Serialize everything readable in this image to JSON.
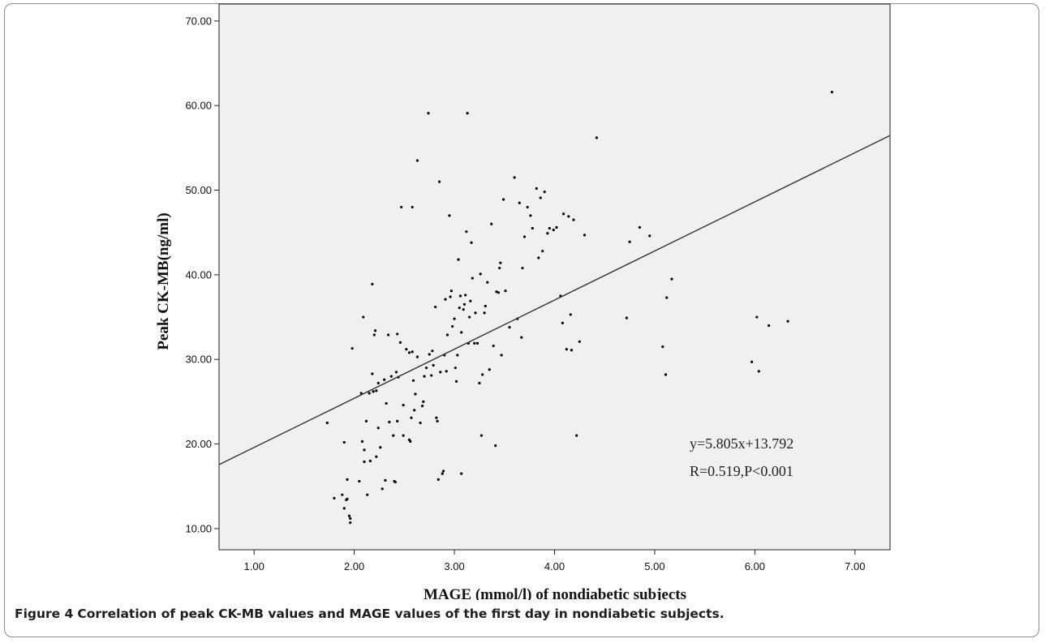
{
  "caption": {
    "label": "Figure 4",
    "text": "Correlation of peak CK-MB values and MAGE values of the first day in nondiabetic subjects."
  },
  "chart_data": {
    "type": "scatter",
    "xlabel": "MAGE (mmol/l) of nondiabetic subjects",
    "ylabel": "Peak CK-MB(ng/ml)",
    "xlim": [
      0.65,
      7.35
    ],
    "ylim": [
      7.5,
      72.0
    ],
    "x_ticks": [
      1.0,
      2.0,
      3.0,
      4.0,
      5.0,
      6.0,
      7.0
    ],
    "x_tick_labels": [
      "1.00",
      "2.00",
      "3.00",
      "4.00",
      "5.00",
      "6.00",
      "7.00"
    ],
    "y_ticks": [
      10.0,
      20.0,
      30.0,
      40.0,
      50.0,
      60.0,
      70.0
    ],
    "y_tick_labels": [
      "10.00",
      "20.00",
      "30.00",
      "40.00",
      "50.00",
      "60.00",
      "70.00"
    ],
    "grid": false,
    "plot_background": "#f0f0f0",
    "point_color": "#000000",
    "fit_line": {
      "slope": 5.805,
      "intercept": 13.792,
      "color": "#333333"
    },
    "annotations": [
      "y=5.805x+13.792",
      "R=0.519,P<0.001"
    ],
    "points": [
      [
        1.73,
        22.5
      ],
      [
        1.8,
        13.6
      ],
      [
        1.88,
        14.0
      ],
      [
        1.9,
        12.4
      ],
      [
        1.9,
        20.2
      ],
      [
        1.92,
        13.4
      ],
      [
        1.93,
        13.5
      ],
      [
        1.93,
        15.8
      ],
      [
        1.95,
        11.5
      ],
      [
        1.96,
        10.7
      ],
      [
        1.96,
        11.2
      ],
      [
        1.98,
        31.3
      ],
      [
        2.05,
        15.6
      ],
      [
        2.07,
        26.0
      ],
      [
        2.08,
        20.3
      ],
      [
        2.09,
        35.0
      ],
      [
        2.1,
        17.9
      ],
      [
        2.1,
        19.3
      ],
      [
        2.12,
        22.7
      ],
      [
        2.13,
        14.0
      ],
      [
        2.15,
        26.0
      ],
      [
        2.16,
        18.0
      ],
      [
        2.18,
        28.3
      ],
      [
        2.18,
        38.9
      ],
      [
        2.19,
        26.2
      ],
      [
        2.2,
        32.9
      ],
      [
        2.21,
        33.4
      ],
      [
        2.22,
        18.5
      ],
      [
        2.22,
        26.3
      ],
      [
        2.24,
        27.2
      ],
      [
        2.24,
        21.9
      ],
      [
        2.26,
        19.6
      ],
      [
        2.28,
        14.7
      ],
      [
        2.3,
        27.6
      ],
      [
        2.31,
        15.7
      ],
      [
        2.32,
        24.8
      ],
      [
        2.34,
        32.9
      ],
      [
        2.35,
        22.6
      ],
      [
        2.37,
        28.0
      ],
      [
        2.39,
        21.0
      ],
      [
        2.4,
        15.6
      ],
      [
        2.41,
        15.5
      ],
      [
        2.42,
        28.5
      ],
      [
        2.43,
        22.7
      ],
      [
        2.43,
        33.0
      ],
      [
        2.44,
        27.9
      ],
      [
        2.46,
        32.0
      ],
      [
        2.47,
        48.0
      ],
      [
        2.49,
        24.6
      ],
      [
        2.49,
        21.0
      ],
      [
        2.52,
        31.2
      ],
      [
        2.55,
        20.5
      ],
      [
        2.55,
        30.8
      ],
      [
        2.56,
        20.3
      ],
      [
        2.57,
        23.1
      ],
      [
        2.58,
        30.9
      ],
      [
        2.58,
        48.0
      ],
      [
        2.59,
        27.5
      ],
      [
        2.6,
        24.0
      ],
      [
        2.61,
        25.9
      ],
      [
        2.63,
        53.5
      ],
      [
        2.63,
        30.3
      ],
      [
        2.66,
        22.5
      ],
      [
        2.68,
        24.5
      ],
      [
        2.69,
        25.0
      ],
      [
        2.7,
        28.0
      ],
      [
        2.72,
        29.0
      ],
      [
        2.74,
        59.1
      ],
      [
        2.75,
        30.6
      ],
      [
        2.77,
        28.1
      ],
      [
        2.78,
        31.0
      ],
      [
        2.79,
        29.3
      ],
      [
        2.81,
        36.2
      ],
      [
        2.82,
        23.1
      ],
      [
        2.83,
        22.7
      ],
      [
        2.84,
        15.8
      ],
      [
        2.85,
        51.0
      ],
      [
        2.86,
        28.5
      ],
      [
        2.88,
        16.5
      ],
      [
        2.89,
        16.8
      ],
      [
        2.9,
        30.5
      ],
      [
        2.91,
        37.1
      ],
      [
        2.92,
        28.6
      ],
      [
        2.93,
        32.9
      ],
      [
        2.95,
        47.0
      ],
      [
        2.96,
        37.4
      ],
      [
        2.97,
        38.1
      ],
      [
        2.98,
        33.9
      ],
      [
        3.0,
        34.8
      ],
      [
        3.01,
        29.0
      ],
      [
        3.02,
        27.4
      ],
      [
        3.03,
        30.5
      ],
      [
        3.04,
        41.8
      ],
      [
        3.05,
        36.1
      ],
      [
        3.06,
        37.5
      ],
      [
        3.07,
        33.2
      ],
      [
        3.07,
        16.5
      ],
      [
        3.09,
        35.9
      ],
      [
        3.1,
        36.5
      ],
      [
        3.11,
        37.6
      ],
      [
        3.12,
        45.1
      ],
      [
        3.13,
        59.1
      ],
      [
        3.14,
        31.9
      ],
      [
        3.15,
        35.0
      ],
      [
        3.16,
        36.9
      ],
      [
        3.17,
        43.8
      ],
      [
        3.18,
        39.6
      ],
      [
        3.2,
        31.9
      ],
      [
        3.21,
        35.5
      ],
      [
        3.23,
        31.9
      ],
      [
        3.25,
        27.2
      ],
      [
        3.26,
        40.1
      ],
      [
        3.27,
        21.0
      ],
      [
        3.28,
        28.2
      ],
      [
        3.3,
        35.5
      ],
      [
        3.31,
        36.3
      ],
      [
        3.33,
        39.1
      ],
      [
        3.35,
        28.8
      ],
      [
        3.37,
        46.0
      ],
      [
        3.39,
        31.6
      ],
      [
        3.41,
        19.8
      ],
      [
        3.42,
        38.0
      ],
      [
        3.44,
        37.9
      ],
      [
        3.45,
        40.8
      ],
      [
        3.46,
        41.4
      ],
      [
        3.47,
        30.5
      ],
      [
        3.49,
        48.9
      ],
      [
        3.51,
        38.1
      ],
      [
        3.55,
        33.8
      ],
      [
        3.6,
        51.5
      ],
      [
        3.63,
        34.8
      ],
      [
        3.65,
        48.5
      ],
      [
        3.67,
        32.6
      ],
      [
        3.68,
        40.8
      ],
      [
        3.7,
        44.5
      ],
      [
        3.73,
        48.0
      ],
      [
        3.76,
        47.0
      ],
      [
        3.78,
        45.5
      ],
      [
        3.82,
        50.2
      ],
      [
        3.84,
        42.0
      ],
      [
        3.86,
        49.1
      ],
      [
        3.88,
        42.8
      ],
      [
        3.9,
        49.8
      ],
      [
        3.93,
        44.9
      ],
      [
        3.95,
        45.5
      ],
      [
        3.99,
        45.3
      ],
      [
        4.02,
        45.6
      ],
      [
        4.06,
        37.5
      ],
      [
        4.08,
        34.3
      ],
      [
        4.09,
        47.2
      ],
      [
        4.12,
        31.2
      ],
      [
        4.14,
        46.9
      ],
      [
        4.16,
        35.3
      ],
      [
        4.17,
        31.1
      ],
      [
        4.19,
        46.5
      ],
      [
        4.22,
        21.0
      ],
      [
        4.25,
        32.1
      ],
      [
        4.3,
        44.7
      ],
      [
        4.42,
        56.2
      ],
      [
        4.72,
        34.9
      ],
      [
        4.75,
        43.9
      ],
      [
        4.85,
        45.6
      ],
      [
        4.95,
        44.6
      ],
      [
        5.08,
        31.5
      ],
      [
        5.11,
        28.2
      ],
      [
        5.12,
        37.3
      ],
      [
        5.17,
        39.5
      ],
      [
        5.97,
        29.7
      ],
      [
        6.02,
        35.0
      ],
      [
        6.04,
        28.6
      ],
      [
        6.14,
        34.0
      ],
      [
        6.33,
        34.5
      ],
      [
        6.77,
        61.6
      ]
    ]
  }
}
